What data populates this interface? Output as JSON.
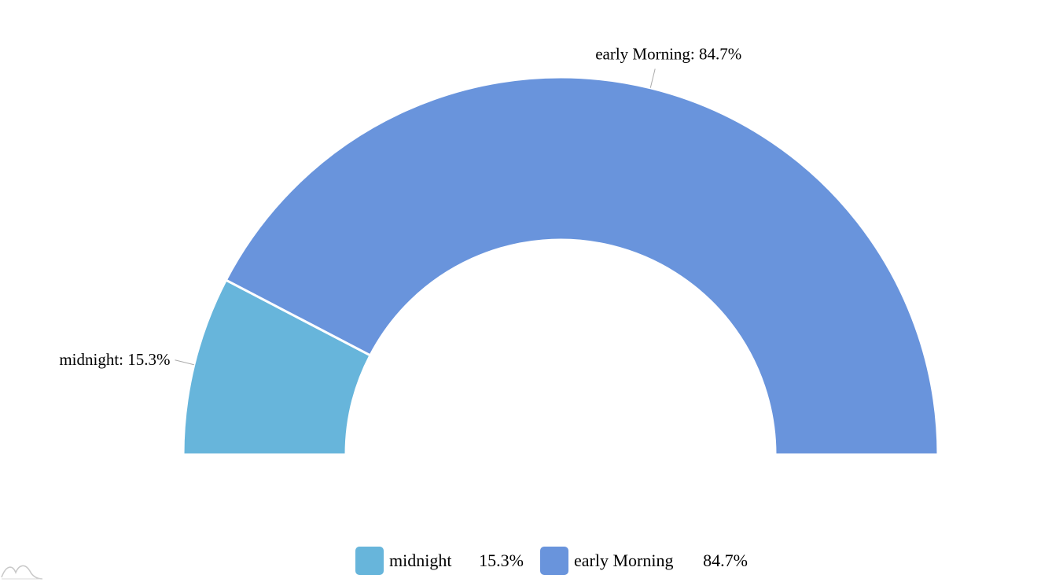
{
  "chart_data": {
    "type": "pie",
    "variant": "semi-donut",
    "categories": [
      "midnight",
      "early Morning"
    ],
    "values": [
      15.3,
      84.7
    ],
    "unit": "%",
    "colors": [
      "#67b5db",
      "#6994dc"
    ],
    "labels": [
      "midnight: 15.3%",
      "early Morning: 84.7%"
    ],
    "legend": {
      "placement": "bottom-center",
      "items": [
        {
          "name": "midnight",
          "value": "15.3%",
          "color": "#67b5db"
        },
        {
          "name": "early Morning",
          "value": "84.7%",
          "color": "#6994dc"
        }
      ]
    }
  }
}
